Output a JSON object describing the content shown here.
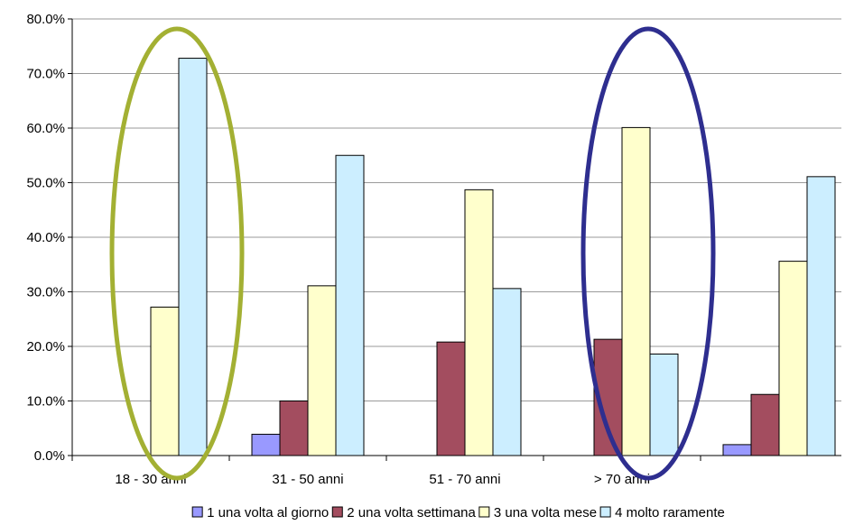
{
  "chart_data": {
    "type": "bar",
    "categories": [
      "18 - 30 anni",
      "31 - 50 anni",
      "51 - 70 anni",
      "> 70 anni",
      ""
    ],
    "series": [
      {
        "name": "1 una volta al giorno",
        "color": "#9999ff",
        "values": [
          0,
          3.9,
          0,
          0,
          2.0
        ]
      },
      {
        "name": "2 una volta settimana",
        "color": "#a34d5f",
        "values": [
          0,
          10.0,
          20.8,
          21.3,
          11.2
        ]
      },
      {
        "name": "3  una volta mese",
        "color": "#ffffcc",
        "values": [
          27.2,
          31.1,
          48.7,
          60.1,
          35.6
        ]
      },
      {
        "name": "4 molto raramente",
        "color": "#cceeff",
        "values": [
          72.8,
          55.0,
          30.6,
          18.6,
          51.1
        ]
      }
    ],
    "ylim": [
      0,
      80
    ],
    "yticks": [
      "0.0%",
      "10.0%",
      "20.0%",
      "30.0%",
      "40.0%",
      "50.0%",
      "60.0%",
      "70.0%",
      "80.0%"
    ],
    "gridlines": true,
    "legend_position": "bottom",
    "annotations": [
      {
        "type": "ellipse",
        "around_category": "18 - 30 anni",
        "color": "#a3b033"
      },
      {
        "type": "ellipse",
        "around_category": "> 70 anni",
        "color": "#2e2e8f"
      }
    ]
  }
}
